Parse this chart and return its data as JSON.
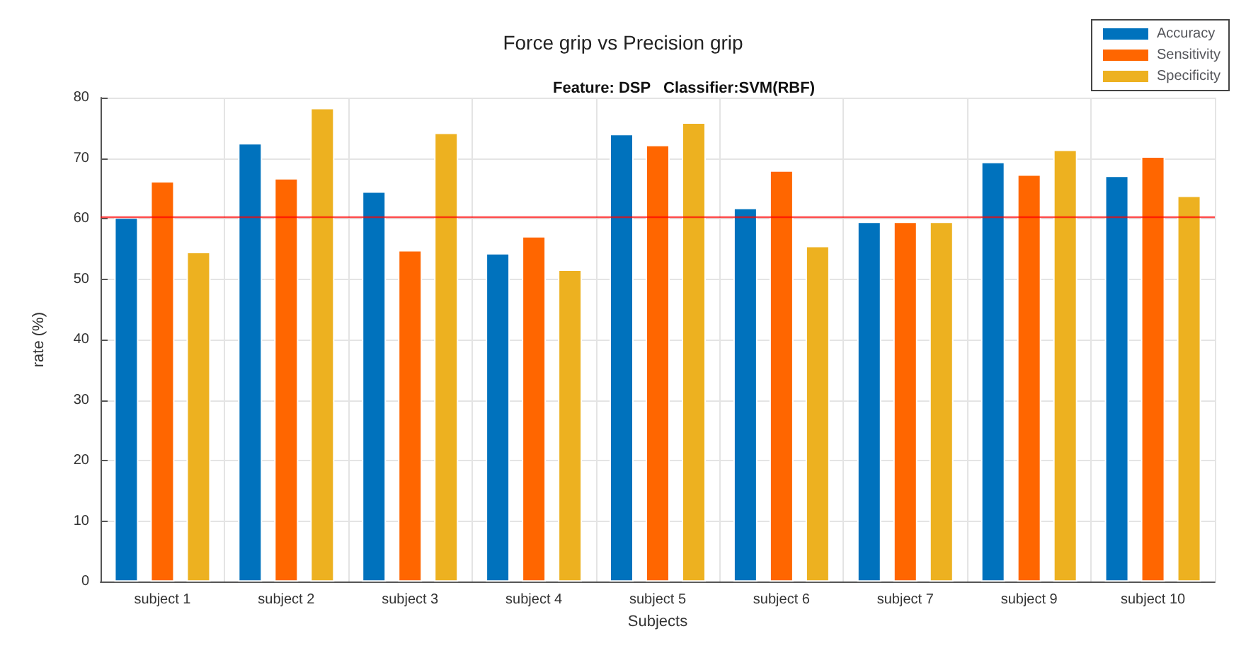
{
  "chart_data": {
    "type": "bar",
    "title": "Force grip vs Precision grip",
    "subtitle": "Feature: DSP   Classifier:SVM(RBF)",
    "xlabel": "Subjects",
    "ylabel": "rate (%)",
    "categories": [
      "subject 1",
      "subject 2",
      "subject 3",
      "subject 4",
      "subject 5",
      "subject 6",
      "subject 7",
      "subject 9",
      "subject 10"
    ],
    "series": [
      {
        "name": "Accuracy",
        "color": "#0072bd",
        "values": [
          60.2,
          72.5,
          64.5,
          54.3,
          74.0,
          61.8,
          59.5,
          69.4,
          67.1
        ]
      },
      {
        "name": "Sensitivity",
        "color": "#ff6600",
        "values": [
          66.2,
          66.7,
          54.8,
          57.1,
          72.2,
          68.0,
          59.5,
          67.3,
          70.3
        ]
      },
      {
        "name": "Specificity",
        "color": "#edb120",
        "values": [
          54.5,
          78.3,
          74.2,
          51.6,
          75.9,
          55.5,
          59.5,
          71.4,
          63.8
        ]
      }
    ],
    "ylim": [
      0,
      80
    ],
    "yticks": [
      0,
      10,
      20,
      30,
      40,
      50,
      60,
      70,
      80
    ],
    "grid": true,
    "legend": "top right",
    "ref_lines": [
      {
        "axis": "y",
        "value": 60.3,
        "color": "#ff0000"
      }
    ]
  }
}
